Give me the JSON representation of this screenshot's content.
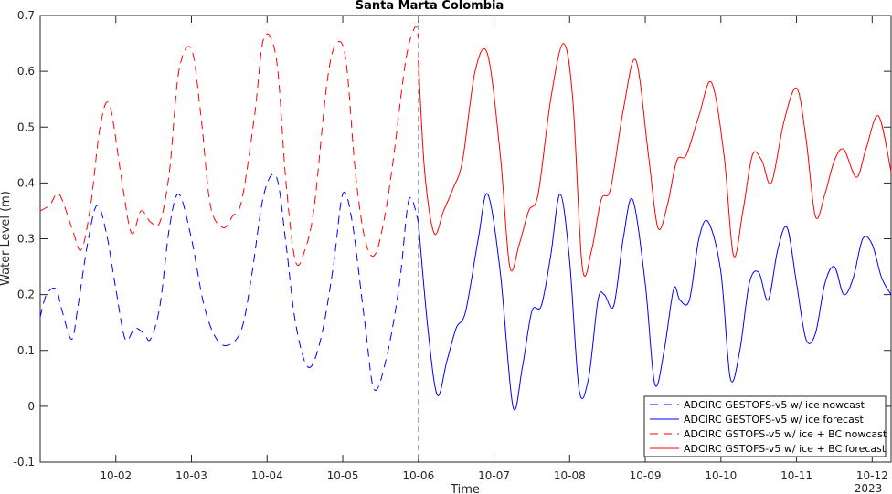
{
  "chart_data": {
    "type": "line",
    "title": "Santa Marta Colombia",
    "xlabel": "Time",
    "ylabel": "Water Level (m)",
    "year_label": "2023",
    "xlim": [
      "2023-10-01T00:00",
      "2023-10-12T06:00"
    ],
    "ylim": [
      -0.1,
      0.7
    ],
    "x_ticks": [
      "10-02",
      "10-03",
      "10-04",
      "10-05",
      "10-06",
      "10-07",
      "10-08",
      "10-09",
      "10-10",
      "10-11",
      "10-12"
    ],
    "x_tick_dates": [
      "2023-10-02",
      "2023-10-03",
      "2023-10-04",
      "2023-10-05",
      "2023-10-06",
      "2023-10-07",
      "2023-10-08",
      "2023-10-09",
      "2023-10-10",
      "2023-10-11",
      "2023-10-12"
    ],
    "y_ticks": [
      "-0.1",
      "0",
      "0.1",
      "0.2",
      "0.3",
      "0.4",
      "0.5",
      "0.6",
      "0.7"
    ],
    "y_tick_values": [
      -0.1,
      0,
      0.1,
      0.2,
      0.3,
      0.4,
      0.5,
      0.6,
      0.7
    ],
    "grid": false,
    "legend_position": "bottom-right",
    "vline": "2023-10-06T00:00",
    "series": [
      {
        "name": "ADCIRC GESTOFS-v5 w/ ice nowcast",
        "color": "#0000ff",
        "style": "dashed",
        "x": [
          "2023-10-01T00:00",
          "2023-10-01T02:00",
          "2023-10-01T05:00",
          "2023-10-01T07:00",
          "2023-10-01T10:00",
          "2023-10-01T12:00",
          "2023-10-01T15:00",
          "2023-10-01T18:00",
          "2023-10-01T21:00",
          "2023-10-02T00:00",
          "2023-10-02T03:00",
          "2023-10-02T06:00",
          "2023-10-02T09:00",
          "2023-10-02T11:00",
          "2023-10-02T14:00",
          "2023-10-02T17:00",
          "2023-10-02T20:00",
          "2023-10-03T00:00",
          "2023-10-03T04:00",
          "2023-10-03T08:00",
          "2023-10-03T12:00",
          "2023-10-03T16:00",
          "2023-10-03T19:00",
          "2023-10-03T23:00",
          "2023-10-04T03:00",
          "2023-10-04T06:00",
          "2023-10-04T09:00",
          "2023-10-04T13:00",
          "2023-10-04T17:00",
          "2023-10-04T21:00",
          "2023-10-05T00:00",
          "2023-10-05T03:00",
          "2023-10-05T07:00",
          "2023-10-05T10:00",
          "2023-10-05T14:00",
          "2023-10-05T18:00",
          "2023-10-05T21:00",
          "2023-10-06T00:00"
        ],
        "y": [
          0.16,
          0.2,
          0.21,
          0.17,
          0.12,
          0.18,
          0.29,
          0.36,
          0.31,
          0.21,
          0.12,
          0.14,
          0.13,
          0.12,
          0.18,
          0.32,
          0.38,
          0.3,
          0.18,
          0.12,
          0.11,
          0.14,
          0.23,
          0.38,
          0.41,
          0.29,
          0.15,
          0.07,
          0.12,
          0.25,
          0.38,
          0.33,
          0.15,
          0.03,
          0.09,
          0.22,
          0.37,
          0.33
        ]
      },
      {
        "name": "ADCIRC GESTOFS-v5 w/ ice forecast",
        "color": "#0000ff",
        "style": "solid",
        "x": [
          "2023-10-06T00:00",
          "2023-10-06T03:00",
          "2023-10-06T06:00",
          "2023-10-06T09:00",
          "2023-10-06T12:00",
          "2023-10-06T15:00",
          "2023-10-06T19:00",
          "2023-10-06T22:00",
          "2023-10-07T02:00",
          "2023-10-07T06:00",
          "2023-10-07T09:00",
          "2023-10-07T12:00",
          "2023-10-07T15:00",
          "2023-10-07T18:00",
          "2023-10-07T21:00",
          "2023-10-08T00:00",
          "2023-10-08T03:00",
          "2023-10-08T06:00",
          "2023-10-08T09:00",
          "2023-10-08T11:00",
          "2023-10-08T14:00",
          "2023-10-08T17:00",
          "2023-10-08T20:00",
          "2023-10-09T00:00",
          "2023-10-09T03:00",
          "2023-10-09T06:00",
          "2023-10-09T09:00",
          "2023-10-09T11:00",
          "2023-10-09T14:00",
          "2023-10-09T17:00",
          "2023-10-09T20:00",
          "2023-10-10T00:00",
          "2023-10-10T03:00",
          "2023-10-10T06:00",
          "2023-10-10T09:00",
          "2023-10-10T12:00",
          "2023-10-10T15:00",
          "2023-10-10T18:00",
          "2023-10-10T21:00",
          "2023-10-11T00:00",
          "2023-10-11T03:00",
          "2023-10-11T06:00",
          "2023-10-11T09:00",
          "2023-10-11T12:00",
          "2023-10-11T15:00",
          "2023-10-11T18:00",
          "2023-10-11T21:00",
          "2023-10-12T00:00",
          "2023-10-12T03:00",
          "2023-10-12T06:00"
        ],
        "y": [
          0.33,
          0.14,
          0.02,
          0.08,
          0.14,
          0.17,
          0.3,
          0.38,
          0.24,
          0.0,
          0.07,
          0.17,
          0.18,
          0.27,
          0.38,
          0.26,
          0.03,
          0.05,
          0.19,
          0.2,
          0.18,
          0.3,
          0.37,
          0.22,
          0.04,
          0.1,
          0.21,
          0.19,
          0.19,
          0.3,
          0.33,
          0.24,
          0.05,
          0.1,
          0.22,
          0.24,
          0.19,
          0.28,
          0.32,
          0.22,
          0.12,
          0.13,
          0.22,
          0.25,
          0.2,
          0.23,
          0.3,
          0.29,
          0.23,
          0.2
        ]
      },
      {
        "name": "ADCIRC GSTOFS-v5 w/ ice + BC nowcast",
        "color": "#ff0000",
        "style": "dashed",
        "x": [
          "2023-10-01T00:00",
          "2023-10-01T03:00",
          "2023-10-01T06:00",
          "2023-10-01T10:00",
          "2023-10-01T13:00",
          "2023-10-01T16:00",
          "2023-10-01T19:00",
          "2023-10-01T22:00",
          "2023-10-02T02:00",
          "2023-10-02T05:00",
          "2023-10-02T08:00",
          "2023-10-02T11:00",
          "2023-10-02T14:00",
          "2023-10-02T17:00",
          "2023-10-02T20:00",
          "2023-10-03T00:00",
          "2023-10-03T03:00",
          "2023-10-03T06:00",
          "2023-10-03T10:00",
          "2023-10-03T13:00",
          "2023-10-03T16:00",
          "2023-10-03T20:00",
          "2023-10-03T23:00",
          "2023-10-04T03:00",
          "2023-10-04T06:00",
          "2023-10-04T09:00",
          "2023-10-04T12:00",
          "2023-10-04T15:00",
          "2023-10-04T19:00",
          "2023-10-04T22:00",
          "2023-10-05T01:00",
          "2023-10-05T04:00",
          "2023-10-05T07:00",
          "2023-10-05T10:00",
          "2023-10-05T13:00",
          "2023-10-05T16:00",
          "2023-10-05T20:00",
          "2023-10-05T23:00",
          "2023-10-06T00:00"
        ],
        "y": [
          0.35,
          0.36,
          0.38,
          0.32,
          0.28,
          0.36,
          0.5,
          0.54,
          0.4,
          0.31,
          0.35,
          0.33,
          0.33,
          0.42,
          0.6,
          0.64,
          0.52,
          0.36,
          0.32,
          0.34,
          0.37,
          0.52,
          0.66,
          0.62,
          0.4,
          0.26,
          0.28,
          0.36,
          0.58,
          0.65,
          0.62,
          0.42,
          0.3,
          0.27,
          0.33,
          0.44,
          0.62,
          0.68,
          0.66
        ]
      },
      {
        "name": "ADCIRC GSTOFS-v5 w/ ice + BC forecast",
        "color": "#ff0000",
        "style": "solid",
        "x": [
          "2023-10-06T00:00",
          "2023-10-06T02:00",
          "2023-10-06T05:00",
          "2023-10-06T08:00",
          "2023-10-06T11:00",
          "2023-10-06T14:00",
          "2023-10-06T18:00",
          "2023-10-06T22:00",
          "2023-10-07T02:00",
          "2023-10-07T05:00",
          "2023-10-07T08:00",
          "2023-10-07T11:00",
          "2023-10-07T14:00",
          "2023-10-07T18:00",
          "2023-10-07T22:00",
          "2023-10-08T01:00",
          "2023-10-08T04:00",
          "2023-10-08T07:00",
          "2023-10-08T10:00",
          "2023-10-08T13:00",
          "2023-10-08T17:00",
          "2023-10-08T21:00",
          "2023-10-09T01:00",
          "2023-10-09T04:00",
          "2023-10-09T07:00",
          "2023-10-09T10:00",
          "2023-10-09T13:00",
          "2023-10-09T17:00",
          "2023-10-09T21:00",
          "2023-10-10T01:00",
          "2023-10-10T04:00",
          "2023-10-10T07:00",
          "2023-10-10T10:00",
          "2023-10-10T13:00",
          "2023-10-10T16:00",
          "2023-10-10T20:00",
          "2023-10-11T00:00",
          "2023-10-11T03:00",
          "2023-10-11T06:00",
          "2023-10-11T09:00",
          "2023-10-11T12:00",
          "2023-10-11T15:00",
          "2023-10-11T19:00",
          "2023-10-11T22:00",
          "2023-10-12T02:00",
          "2023-10-12T06:00"
        ],
        "y": [
          0.62,
          0.42,
          0.31,
          0.35,
          0.39,
          0.44,
          0.6,
          0.63,
          0.45,
          0.25,
          0.29,
          0.35,
          0.38,
          0.55,
          0.65,
          0.55,
          0.25,
          0.28,
          0.37,
          0.39,
          0.53,
          0.62,
          0.45,
          0.32,
          0.36,
          0.44,
          0.45,
          0.52,
          0.58,
          0.45,
          0.27,
          0.35,
          0.45,
          0.44,
          0.4,
          0.51,
          0.57,
          0.48,
          0.34,
          0.38,
          0.44,
          0.46,
          0.41,
          0.46,
          0.52,
          0.42
        ]
      }
    ]
  }
}
